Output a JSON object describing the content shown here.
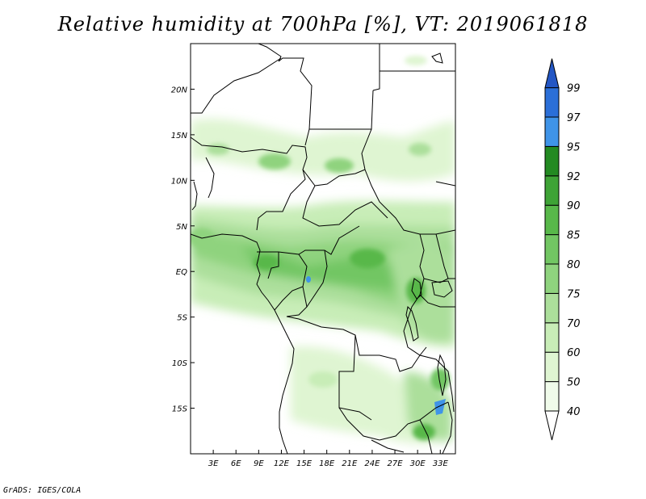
{
  "title": "Relative humidity at 700hPa [%], VT: 2019061818",
  "credit": "GrADS: IGES/COLA",
  "map": {
    "lon_range": [
      0,
      35
    ],
    "lat_range": [
      -20,
      25
    ],
    "lon_ticks": [
      "3E",
      "6E",
      "9E",
      "12E",
      "15E",
      "18E",
      "21E",
      "24E",
      "27E",
      "30E",
      "33E"
    ],
    "lat_ticks": [
      "20N",
      "15N",
      "10N",
      "5N",
      "EQ",
      "5S",
      "10S",
      "15S"
    ]
  },
  "colorbar": {
    "levels": [
      "40",
      "50",
      "60",
      "70",
      "75",
      "80",
      "85",
      "90",
      "92",
      "95",
      "97",
      "99"
    ],
    "colors": [
      "#f0fbea",
      "#dff5d2",
      "#c8edb7",
      "#acdf9b",
      "#8fd37e",
      "#72c663",
      "#58b84a",
      "#3ea336",
      "#238a22",
      "#3f94e8",
      "#2b6fd8",
      "#2356c4"
    ],
    "below_color": "#ffffff",
    "above_color": "#2356c4"
  }
}
